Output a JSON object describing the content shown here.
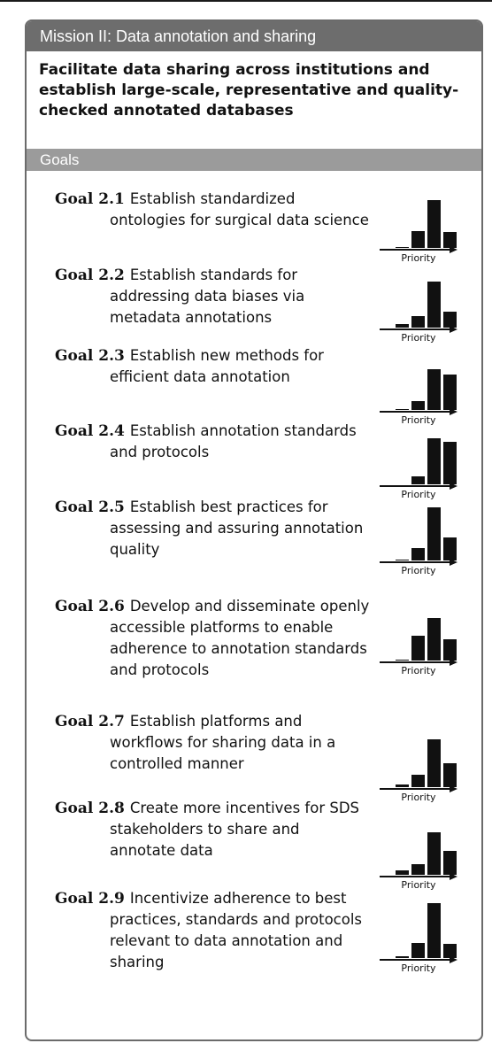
{
  "mission": {
    "title": "Mission II: Data annotation and sharing",
    "summary": "Facilitate data sharing across institutions and establish large-scale, representative and quality-checked annotated databases"
  },
  "goals_header": "Goals",
  "priority_label": "Priority",
  "goals": [
    {
      "number": "Goal 2.1",
      "text": "Establish standardized ontologies for surgical data science",
      "priority_bars": [
        1,
        19,
        54,
        18
      ]
    },
    {
      "number": "Goal 2.2",
      "text": "Establish standards for addressing data biases via metadata annotations",
      "priority_bars": [
        4,
        13,
        52,
        18
      ]
    },
    {
      "number": "Goal 2.3",
      "text": "Establish new methods for efficient data annotation",
      "priority_bars": [
        1,
        10,
        46,
        40
      ]
    },
    {
      "number": "Goal 2.4",
      "text": "Establish annotation standards and protocols",
      "priority_bars": [
        0,
        9,
        52,
        48
      ]
    },
    {
      "number": "Goal 2.5",
      "text": "Establish best practices for assessing and assuring annotation quality",
      "priority_bars": [
        1,
        14,
        60,
        26
      ]
    },
    {
      "number": "Goal 2.6",
      "text": "Develop and disseminate openly accessible platforms to enable adherence to annotation standards and protocols",
      "priority_bars": [
        1,
        28,
        48,
        24
      ]
    },
    {
      "number": "Goal 2.7",
      "text": "Establish platforms and workflows for sharing data in a controlled manner",
      "priority_bars": [
        3,
        14,
        54,
        27
      ]
    },
    {
      "number": "Goal 2.8",
      "text": "Create more incentives for SDS stakeholders to share and annotate data",
      "priority_bars": [
        5,
        12,
        48,
        27
      ]
    },
    {
      "number": "Goal 2.9",
      "text": "Incentivize adherence to best practices, standards and protocols relevant to data annotation and sharing",
      "priority_bars": [
        2,
        17,
        70,
        16
      ]
    }
  ]
}
